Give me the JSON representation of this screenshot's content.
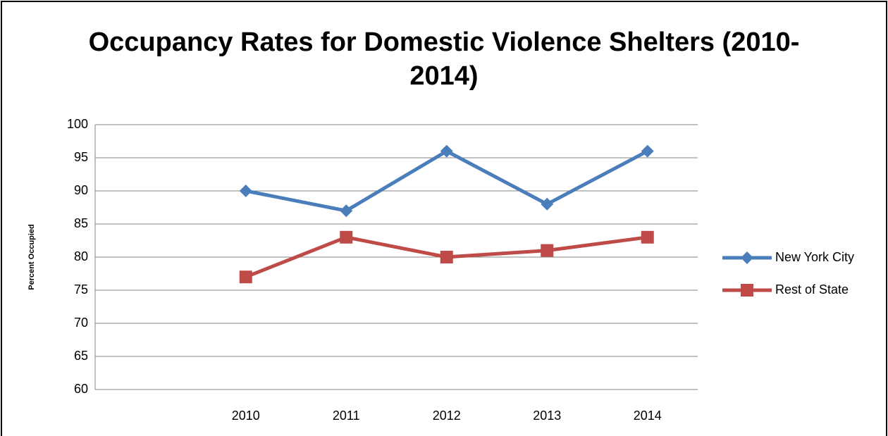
{
  "chart_data": {
    "type": "line",
    "title": "Occupancy Rates for Domestic Violence Shelters (2010-2014)",
    "y_label": "Percent Occupied",
    "categories": [
      null,
      "2010",
      "2011",
      "2012",
      "2013",
      "2014"
    ],
    "series": [
      {
        "name": "New York City",
        "color": "#4a7ebb",
        "marker": "diamond",
        "values": [
          null,
          90,
          87,
          96,
          88,
          96
        ]
      },
      {
        "name": "Rest of State",
        "color": "#be4b48",
        "marker": "square",
        "values": [
          null,
          77,
          83,
          80,
          81,
          83
        ]
      }
    ],
    "ylim": [
      60,
      100
    ],
    "yticks": [
      60,
      65,
      70,
      75,
      80,
      85,
      90,
      95,
      100
    ],
    "grid": true,
    "legend": "right"
  }
}
